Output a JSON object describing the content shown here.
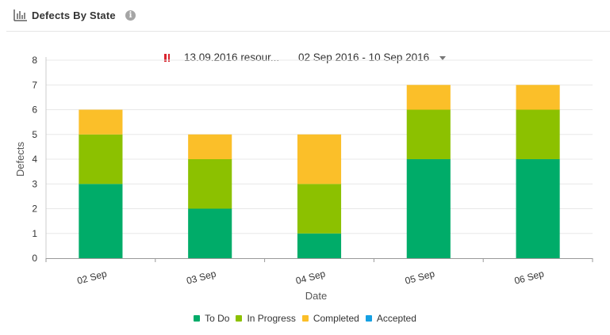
{
  "header": {
    "title": "Defects By State",
    "chart_icon": "bar-chart-icon",
    "info_icon": "info-icon",
    "info_glyph": "i"
  },
  "filter": {
    "resource_label": "13.09.2016 resour...",
    "date_range": "02 Sep 2016 - 10 Sep 2016",
    "pause_icon": "pause-icon",
    "dropdown_icon": "caret-down-icon"
  },
  "colors": {
    "todo": "#00ac69",
    "in_progress": "#8cc100",
    "completed": "#fbbf29",
    "accepted": "#15a0e3",
    "pause": "#d9232d"
  },
  "chart_data": {
    "type": "bar",
    "stacked": true,
    "categories": [
      "02 Sep",
      "03 Sep",
      "04 Sep",
      "05 Sep",
      "06 Sep"
    ],
    "series": [
      {
        "name": "To Do",
        "values": [
          3,
          2,
          1,
          4,
          4
        ]
      },
      {
        "name": "In Progress",
        "values": [
          2,
          2,
          2,
          2,
          2
        ]
      },
      {
        "name": "Completed",
        "values": [
          1,
          1,
          2,
          1,
          1
        ]
      },
      {
        "name": "Accepted",
        "values": [
          0,
          0,
          0,
          0,
          0
        ]
      }
    ],
    "xlabel": "Date",
    "ylabel": "Defects",
    "ylim": [
      0,
      8
    ],
    "yticks": [
      "0",
      "1",
      "2",
      "3",
      "4",
      "5",
      "6",
      "7",
      "8"
    ],
    "grid": true,
    "legend_position": "bottom"
  }
}
